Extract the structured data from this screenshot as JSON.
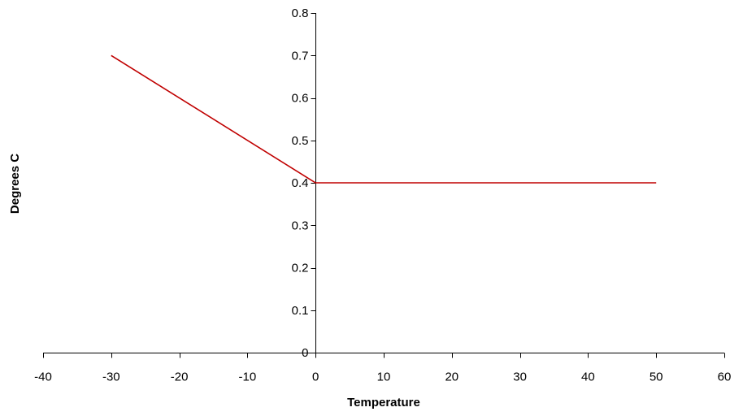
{
  "chart_data": {
    "type": "line",
    "title": "",
    "xlabel": "Temperature",
    "ylabel": "Degrees C",
    "xlim": [
      -40,
      60
    ],
    "ylim": [
      0,
      0.8
    ],
    "x_ticks": [
      -40,
      -30,
      -20,
      -10,
      0,
      10,
      20,
      30,
      40,
      50,
      60
    ],
    "y_ticks": [
      0,
      0.1,
      0.2,
      0.3,
      0.4,
      0.5,
      0.6,
      0.7,
      0.8
    ],
    "grid": false,
    "legend": "none",
    "series": [
      {
        "color": "#c00000",
        "points": [
          {
            "x": -30,
            "y": 0.7
          },
          {
            "x": 0,
            "y": 0.4
          },
          {
            "x": 50,
            "y": 0.4
          }
        ]
      }
    ]
  }
}
